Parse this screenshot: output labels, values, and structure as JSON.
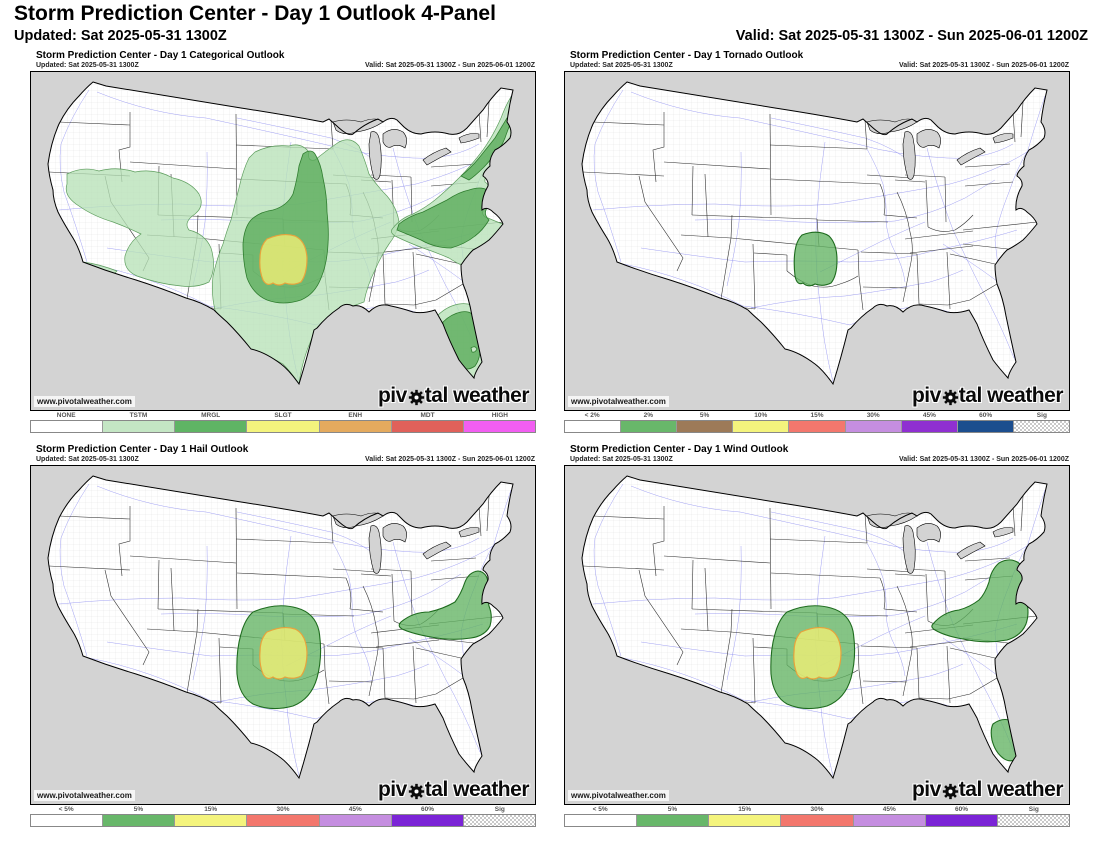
{
  "page": {
    "title": "Storm Prediction Center - Day 1 Outlook 4-Panel",
    "updated": "Updated: Sat 2025-05-31 1300Z",
    "valid": "Valid: Sat 2025-05-31 1300Z - Sun 2025-06-01 1200Z"
  },
  "watermark": "www.pivotalweather.com",
  "logo": {
    "pre": "piv",
    "post": "tal weather"
  },
  "map_colors": {
    "ocean_foreign": "#d3d3d3",
    "land": "#ffffff",
    "state_border": "#333333",
    "county_line": "#e0e0e0",
    "road": "#8a8af0"
  },
  "panels": [
    {
      "id": "categorical",
      "title": "Storm Prediction Center - Day 1 Categorical Outlook",
      "updated": "Updated: Sat 2025-05-31 1300Z",
      "valid": "Valid: Sat 2025-05-31 1300Z - Sun 2025-06-01 1200Z",
      "legend": [
        {
          "label": "NONE",
          "color": "#ffffff"
        },
        {
          "label": "TSTM",
          "color": "#c4e6c4"
        },
        {
          "label": "MRGL",
          "color": "#5fb464"
        },
        {
          "label": "SLGT",
          "color": "#f4f47d"
        },
        {
          "label": "ENH",
          "color": "#e4aa5e"
        },
        {
          "label": "MDT",
          "color": "#e0615a"
        },
        {
          "label": "HIGH",
          "color": "#f25ef2"
        }
      ],
      "areas": [
        {
          "level": "TSTM",
          "geo": "cat_tstm_west",
          "fill": "#b7e1b7",
          "stroke": "#5f9e5f",
          "sw": 0.7
        },
        {
          "level": "TSTM",
          "geo": "cat_tstm_sd",
          "fill": "#b7e1b7",
          "stroke": "#5f9e5f",
          "sw": 0.7
        },
        {
          "level": "TSTM",
          "geo": "cat_tstm_central",
          "fill": "#b7e1b7",
          "stroke": "#5f9e5f",
          "sw": 0.7
        },
        {
          "level": "TSTM",
          "geo": "cat_tstm_east",
          "fill": "#b7e1b7",
          "stroke": "#5f9e5f",
          "sw": 0.7
        },
        {
          "level": "TSTM",
          "geo": "cat_tstm_fl",
          "fill": "#b7e1b7",
          "stroke": "#5f9e5f",
          "sw": 0.7
        },
        {
          "level": "MRGL",
          "geo": "cat_mrgl_central",
          "fill": "#58ab58",
          "stroke": "#2f7d2f",
          "sw": 0.8
        },
        {
          "level": "MRGL",
          "geo": "cat_mrgl_east",
          "fill": "#58ab58",
          "stroke": "#2f7d2f",
          "sw": 0.8
        },
        {
          "level": "MRGL",
          "geo": "cat_mrgl_ne",
          "fill": "#58ab58",
          "stroke": "#2f7d2f",
          "sw": 0.8
        },
        {
          "level": "MRGL",
          "geo": "cat_mrgl_fl",
          "fill": "#58ab58",
          "stroke": "#2f7d2f",
          "sw": 0.8
        },
        {
          "level": "SLGT",
          "geo": "slgt_ok",
          "fill": "#f2ef75",
          "stroke": "#e8a33c",
          "sw": 1.2
        }
      ]
    },
    {
      "id": "tornado",
      "title": "Storm Prediction Center - Day 1 Tornado Outlook",
      "updated": "Updated: Sat 2025-05-31 1300Z",
      "valid": "Valid: Sat 2025-05-31 1300Z - Sun 2025-06-01 1200Z",
      "legend": [
        {
          "label": "< 2%",
          "color": "#ffffff"
        },
        {
          "label": "2%",
          "color": "#68b76a"
        },
        {
          "label": "5%",
          "color": "#9d7a58"
        },
        {
          "label": "10%",
          "color": "#f4f47d"
        },
        {
          "label": "15%",
          "color": "#f3776d"
        },
        {
          "label": "30%",
          "color": "#c58ee0"
        },
        {
          "label": "45%",
          "color": "#8f2fd1"
        },
        {
          "label": "60%",
          "color": "#1c4e8e"
        },
        {
          "label": "Sig",
          "color": "hatch"
        }
      ],
      "areas": [
        {
          "level": "2%",
          "geo": "tor_2",
          "fill": "#63b363",
          "stroke": "#1e6b1e",
          "sw": 1.1
        }
      ]
    },
    {
      "id": "hail",
      "title": "Storm Prediction Center - Day 1 Hail Outlook",
      "updated": "Updated: Sat 2025-05-31 1300Z",
      "valid": "Valid: Sat 2025-05-31 1300Z - Sun 2025-06-01 1200Z",
      "legend": [
        {
          "label": "< 5%",
          "color": "#ffffff"
        },
        {
          "label": "5%",
          "color": "#68b76a"
        },
        {
          "label": "15%",
          "color": "#f4f47d"
        },
        {
          "label": "30%",
          "color": "#f3776d"
        },
        {
          "label": "45%",
          "color": "#c58ee0"
        },
        {
          "label": "60%",
          "color": "#7b24d6"
        },
        {
          "label": "Sig",
          "color": "hatch"
        }
      ],
      "areas": [
        {
          "level": "5%",
          "geo": "prob_5_central",
          "fill": "#63b363",
          "stroke": "#1e6b1e",
          "sw": 1.1
        },
        {
          "level": "5%",
          "geo": "hail_5_east",
          "fill": "#63b363",
          "stroke": "#1e6b1e",
          "sw": 1.1
        },
        {
          "level": "15%",
          "geo": "prob_15_ok",
          "fill": "#f2ef75",
          "stroke": "#e8a33c",
          "sw": 1.2
        }
      ]
    },
    {
      "id": "wind",
      "title": "Storm Prediction Center - Day 1 Wind Outlook",
      "updated": "Updated: Sat 2025-05-31 1300Z",
      "valid": "Valid: Sat 2025-05-31 1300Z - Sun 2025-06-01 1200Z",
      "legend": [
        {
          "label": "< 5%",
          "color": "#ffffff"
        },
        {
          "label": "5%",
          "color": "#68b76a"
        },
        {
          "label": "15%",
          "color": "#f4f47d"
        },
        {
          "label": "30%",
          "color": "#f3776d"
        },
        {
          "label": "45%",
          "color": "#c58ee0"
        },
        {
          "label": "60%",
          "color": "#7b24d6"
        },
        {
          "label": "Sig",
          "color": "hatch"
        }
      ],
      "areas": [
        {
          "level": "5%",
          "geo": "prob_5_central",
          "fill": "#63b363",
          "stroke": "#1e6b1e",
          "sw": 1.1
        },
        {
          "level": "5%",
          "geo": "wind_5_east",
          "fill": "#63b363",
          "stroke": "#1e6b1e",
          "sw": 1.1
        },
        {
          "level": "5%",
          "geo": "wind_5_fl",
          "fill": "#63b363",
          "stroke": "#1e6b1e",
          "sw": 1.1
        },
        {
          "level": "15%",
          "geo": "prob_15_ok",
          "fill": "#f2ef75",
          "stroke": "#e8a33c",
          "sw": 1.2
        }
      ]
    }
  ]
}
